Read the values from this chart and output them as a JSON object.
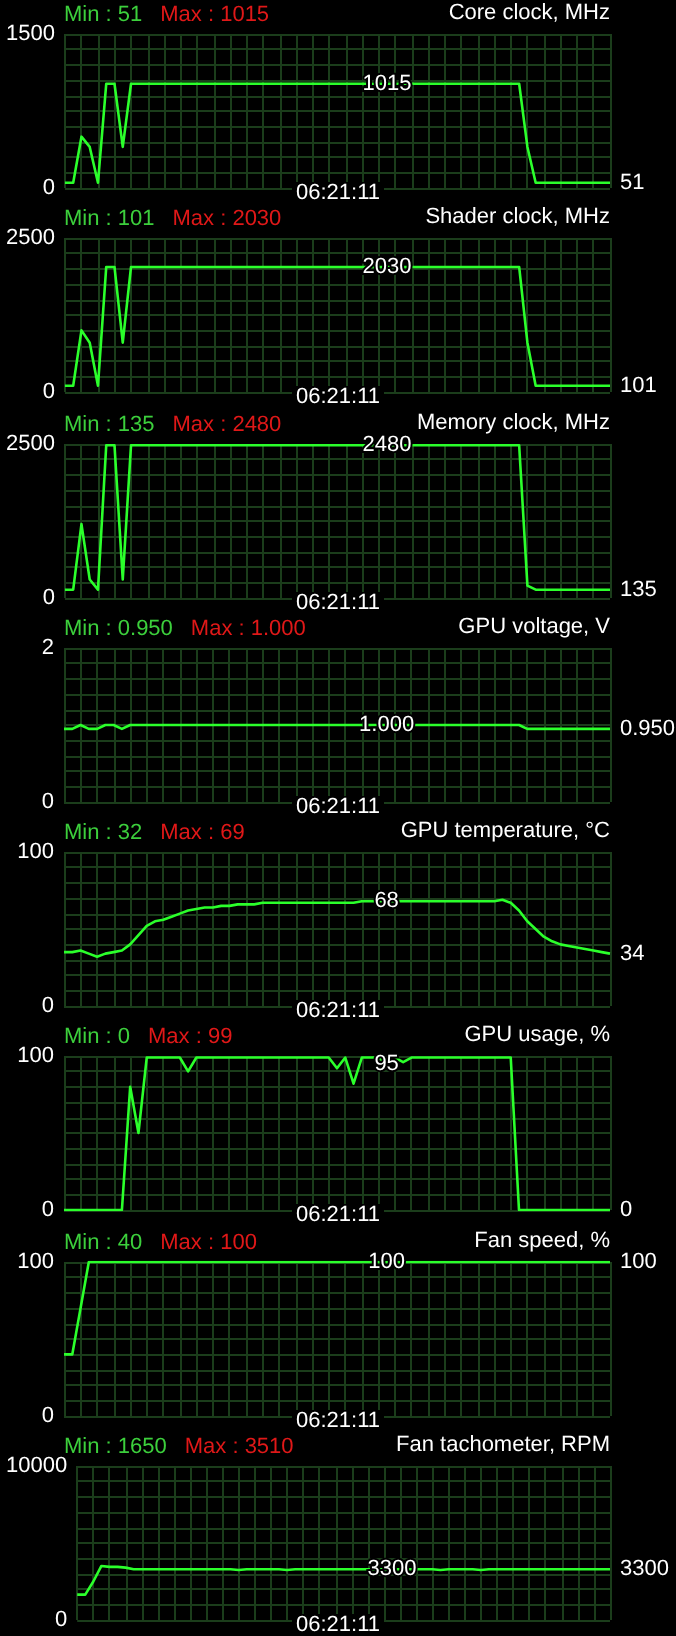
{
  "chart_data": [
    {
      "type": "line",
      "title": "Core clock, MHz",
      "annotations": [
        "Min : 51",
        "Max : 1015",
        "06:21:11"
      ],
      "grid": true,
      "ylim": [
        0,
        1500
      ],
      "yticks": [
        0,
        {
          "value": 150,
          "label": null
        },
        {
          "value": 300,
          "label": null
        },
        {
          "value": 450,
          "label": null
        },
        {
          "value": 600,
          "label": null
        },
        {
          "value": 750,
          "label": null
        },
        {
          "value": 900,
          "label": null
        },
        {
          "value": 1050,
          "label": null
        },
        {
          "value": 1200,
          "label": null
        },
        {
          "value": 1350,
          "label": null
        },
        1500
      ],
      "categories": [
        null,
        null,
        null,
        null,
        null,
        null,
        null,
        null,
        null,
        null,
        null,
        null,
        null,
        null,
        null,
        null,
        null,
        null,
        null,
        null,
        null,
        null,
        null,
        null,
        null,
        null,
        null,
        null,
        null,
        null,
        null,
        null,
        null,
        null,
        null,
        null,
        null,
        null,
        null,
        null,
        null,
        null,
        null,
        null,
        null,
        null,
        null,
        null,
        null,
        null,
        null,
        null,
        null,
        null,
        null,
        null,
        null,
        null,
        null,
        null,
        null,
        null,
        null,
        null,
        null,
        null,
        null
      ],
      "series": [
        {
          "color": "#2bff2b",
          "values": [
            51,
            51,
            500,
            400,
            51,
            1015,
            1015,
            400,
            1015,
            1015,
            1015,
            1015,
            1015,
            1015,
            1015,
            1015,
            1015,
            1015,
            1015,
            1015,
            1015,
            1015,
            1015,
            1015,
            1015,
            1015,
            1015,
            1015,
            1015,
            1015,
            1015,
            1015,
            1015,
            1015,
            1015,
            1015,
            1015,
            1015,
            1015,
            1015,
            1015,
            1015,
            1015,
            1015,
            1015,
            1015,
            1015,
            1015,
            1015,
            1015,
            1015,
            1015,
            1015,
            1015,
            1015,
            1015,
            400,
            51,
            51,
            51,
            51,
            51,
            51,
            51,
            51,
            51,
            51
          ],
          "value_labels": [
            null,
            null,
            null,
            null,
            null,
            null,
            null,
            null,
            null,
            null,
            null,
            null,
            null,
            null,
            null,
            null,
            null,
            null,
            null,
            null,
            null,
            null,
            null,
            null,
            null,
            null,
            null,
            null,
            null,
            null,
            null,
            null,
            null,
            null,
            null,
            null,
            null,
            null,
            null,
            "1015",
            null,
            null,
            null,
            null,
            null,
            null,
            null,
            null,
            null,
            null,
            null,
            null,
            null,
            null,
            null,
            null,
            null,
            null,
            null,
            null,
            null,
            null,
            null,
            null,
            null,
            null,
            "51"
          ]
        }
      ]
    },
    {
      "type": "line",
      "title": "Shader clock, MHz",
      "annotations": [
        "Min : 101",
        "Max : 2030",
        "06:21:11"
      ],
      "grid": true,
      "ylim": [
        0,
        2500
      ],
      "yticks": [
        0,
        {
          "value": 250,
          "label": null
        },
        {
          "value": 500,
          "label": null
        },
        {
          "value": 750,
          "label": null
        },
        {
          "value": 1000,
          "label": null
        },
        {
          "value": 1250,
          "label": null
        },
        {
          "value": 1500,
          "label": null
        },
        {
          "value": 1750,
          "label": null
        },
        {
          "value": 2000,
          "label": null
        },
        {
          "value": 2250,
          "label": null
        },
        2500
      ],
      "categories": [
        null,
        null,
        null,
        null,
        null,
        null,
        null,
        null,
        null,
        null,
        null,
        null,
        null,
        null,
        null,
        null,
        null,
        null,
        null,
        null,
        null,
        null,
        null,
        null,
        null,
        null,
        null,
        null,
        null,
        null,
        null,
        null,
        null,
        null,
        null,
        null,
        null,
        null,
        null,
        null,
        null,
        null,
        null,
        null,
        null,
        null,
        null,
        null,
        null,
        null,
        null,
        null,
        null,
        null,
        null,
        null,
        null,
        null,
        null,
        null,
        null,
        null,
        null,
        null,
        null,
        null,
        null
      ],
      "series": [
        {
          "color": "#2bff2b",
          "values": [
            101,
            101,
            1000,
            800,
            101,
            2030,
            2030,
            800,
            2030,
            2030,
            2030,
            2030,
            2030,
            2030,
            2030,
            2030,
            2030,
            2030,
            2030,
            2030,
            2030,
            2030,
            2030,
            2030,
            2030,
            2030,
            2030,
            2030,
            2030,
            2030,
            2030,
            2030,
            2030,
            2030,
            2030,
            2030,
            2030,
            2030,
            2030,
            2030,
            2030,
            2030,
            2030,
            2030,
            2030,
            2030,
            2030,
            2030,
            2030,
            2030,
            2030,
            2030,
            2030,
            2030,
            2030,
            2030,
            800,
            101,
            101,
            101,
            101,
            101,
            101,
            101,
            101,
            101,
            101
          ],
          "value_labels": [
            null,
            null,
            null,
            null,
            null,
            null,
            null,
            null,
            null,
            null,
            null,
            null,
            null,
            null,
            null,
            null,
            null,
            null,
            null,
            null,
            null,
            null,
            null,
            null,
            null,
            null,
            null,
            null,
            null,
            null,
            null,
            null,
            null,
            null,
            null,
            null,
            null,
            null,
            null,
            "2030",
            null,
            null,
            null,
            null,
            null,
            null,
            null,
            null,
            null,
            null,
            null,
            null,
            null,
            null,
            null,
            null,
            null,
            null,
            null,
            null,
            null,
            null,
            null,
            null,
            null,
            null,
            "101"
          ]
        }
      ]
    },
    {
      "type": "line",
      "title": "Memory clock, MHz",
      "annotations": [
        "Min : 135",
        "Max : 2480",
        "06:21:11"
      ],
      "grid": true,
      "ylim": [
        0,
        2500
      ],
      "yticks": [
        0,
        {
          "value": 250,
          "label": null
        },
        {
          "value": 500,
          "label": null
        },
        {
          "value": 750,
          "label": null
        },
        {
          "value": 1000,
          "label": null
        },
        {
          "value": 1250,
          "label": null
        },
        {
          "value": 1500,
          "label": null
        },
        {
          "value": 1750,
          "label": null
        },
        {
          "value": 2000,
          "label": null
        },
        {
          "value": 2250,
          "label": null
        },
        2500
      ],
      "categories": [
        null,
        null,
        null,
        null,
        null,
        null,
        null,
        null,
        null,
        null,
        null,
        null,
        null,
        null,
        null,
        null,
        null,
        null,
        null,
        null,
        null,
        null,
        null,
        null,
        null,
        null,
        null,
        null,
        null,
        null,
        null,
        null,
        null,
        null,
        null,
        null,
        null,
        null,
        null,
        null,
        null,
        null,
        null,
        null,
        null,
        null,
        null,
        null,
        null,
        null,
        null,
        null,
        null,
        null,
        null,
        null,
        null,
        null,
        null,
        null,
        null,
        null,
        null,
        null,
        null,
        null,
        null
      ],
      "series": [
        {
          "color": "#2bff2b",
          "values": [
            135,
            135,
            1200,
            300,
            135,
            2480,
            2480,
            300,
            2480,
            2480,
            2480,
            2480,
            2480,
            2480,
            2480,
            2480,
            2480,
            2480,
            2480,
            2480,
            2480,
            2480,
            2480,
            2480,
            2480,
            2480,
            2480,
            2480,
            2480,
            2480,
            2480,
            2480,
            2480,
            2480,
            2480,
            2480,
            2480,
            2480,
            2480,
            2480,
            2480,
            2480,
            2480,
            2480,
            2480,
            2480,
            2480,
            2480,
            2480,
            2480,
            2480,
            2480,
            2480,
            2480,
            2480,
            2480,
            200,
            135,
            135,
            135,
            135,
            135,
            135,
            135,
            135,
            135,
            135
          ],
          "value_labels": [
            null,
            null,
            null,
            null,
            null,
            null,
            null,
            null,
            null,
            null,
            null,
            null,
            null,
            null,
            null,
            null,
            null,
            null,
            null,
            null,
            null,
            null,
            null,
            null,
            null,
            null,
            null,
            null,
            null,
            null,
            null,
            null,
            null,
            null,
            null,
            null,
            null,
            null,
            null,
            "2480",
            null,
            null,
            null,
            null,
            null,
            null,
            null,
            null,
            null,
            null,
            null,
            null,
            null,
            null,
            null,
            null,
            null,
            null,
            null,
            null,
            null,
            null,
            null,
            null,
            null,
            null,
            "135"
          ]
        }
      ]
    },
    {
      "type": "line",
      "title": "GPU voltage, V",
      "annotations": [
        "Min : 0.950",
        "Max : 1.000",
        "06:21:11"
      ],
      "grid": true,
      "ylim": [
        0,
        2
      ],
      "yticks": [
        0,
        {
          "value": 0.2,
          "label": null
        },
        {
          "value": 0.4,
          "label": null
        },
        {
          "value": 0.6,
          "label": null
        },
        {
          "value": 0.8,
          "label": null
        },
        {
          "value": 1,
          "label": null
        },
        {
          "value": 1.2,
          "label": null
        },
        {
          "value": 1.4,
          "label": null
        },
        {
          "value": 1.6,
          "label": null
        },
        {
          "value": 1.8,
          "label": null
        },
        2
      ],
      "categories": [
        null,
        null,
        null,
        null,
        null,
        null,
        null,
        null,
        null,
        null,
        null,
        null,
        null,
        null,
        null,
        null,
        null,
        null,
        null,
        null,
        null,
        null,
        null,
        null,
        null,
        null,
        null,
        null,
        null,
        null,
        null,
        null,
        null,
        null,
        null,
        null,
        null,
        null,
        null,
        null,
        null,
        null,
        null,
        null,
        null,
        null,
        null,
        null,
        null,
        null,
        null,
        null,
        null,
        null,
        null,
        null,
        null,
        null,
        null,
        null,
        null,
        null,
        null,
        null,
        null,
        null,
        null
      ],
      "series": [
        {
          "color": "#2bff2b",
          "values": [
            0.95,
            0.95,
            1,
            0.95,
            0.95,
            1,
            1,
            0.95,
            1,
            1,
            1,
            1,
            1,
            1,
            1,
            1,
            1,
            1,
            1,
            1,
            1,
            1,
            1,
            1,
            1,
            1,
            1,
            1,
            1,
            1,
            1,
            1,
            1,
            1,
            1,
            1,
            1,
            1,
            1,
            1,
            1,
            1,
            1,
            1,
            1,
            1,
            1,
            1,
            1,
            1,
            1,
            1,
            1,
            1,
            1,
            1,
            0.95,
            0.95,
            0.95,
            0.95,
            0.95,
            0.95,
            0.95,
            0.95,
            0.95,
            0.95,
            0.95
          ],
          "value_labels": [
            null,
            null,
            null,
            null,
            null,
            null,
            null,
            null,
            null,
            null,
            null,
            null,
            null,
            null,
            null,
            null,
            null,
            null,
            null,
            null,
            null,
            null,
            null,
            null,
            null,
            null,
            null,
            null,
            null,
            null,
            null,
            null,
            null,
            null,
            null,
            null,
            null,
            null,
            null,
            "1.000",
            null,
            null,
            null,
            null,
            null,
            null,
            null,
            null,
            null,
            null,
            null,
            null,
            null,
            null,
            null,
            null,
            null,
            null,
            null,
            null,
            null,
            null,
            null,
            null,
            null,
            null,
            "0.950"
          ]
        }
      ]
    },
    {
      "type": "line",
      "title": "GPU temperature, °C",
      "annotations": [
        "Min : 32",
        "Max : 69",
        "06:21:11"
      ],
      "grid": true,
      "ylim": [
        0,
        100
      ],
      "yticks": [
        0,
        {
          "value": 10,
          "label": null
        },
        {
          "value": 20,
          "label": null
        },
        {
          "value": 30,
          "label": null
        },
        {
          "value": 40,
          "label": null
        },
        {
          "value": 50,
          "label": null
        },
        {
          "value": 60,
          "label": null
        },
        {
          "value": 70,
          "label": null
        },
        {
          "value": 80,
          "label": null
        },
        {
          "value": 90,
          "label": null
        },
        100
      ],
      "categories": [
        null,
        null,
        null,
        null,
        null,
        null,
        null,
        null,
        null,
        null,
        null,
        null,
        null,
        null,
        null,
        null,
        null,
        null,
        null,
        null,
        null,
        null,
        null,
        null,
        null,
        null,
        null,
        null,
        null,
        null,
        null,
        null,
        null,
        null,
        null,
        null,
        null,
        null,
        null,
        null,
        null,
        null,
        null,
        null,
        null,
        null,
        null,
        null,
        null,
        null,
        null,
        null,
        null,
        null,
        null,
        null,
        null,
        null,
        null,
        null,
        null,
        null,
        null,
        null,
        null,
        null,
        null
      ],
      "series": [
        {
          "color": "#2bff2b",
          "values": [
            35,
            35,
            36,
            34,
            32,
            34,
            35,
            36,
            40,
            46,
            52,
            55,
            56,
            58,
            60,
            62,
            63,
            64,
            64,
            65,
            65,
            66,
            66,
            66,
            67,
            67,
            67,
            67,
            67,
            67,
            67,
            67,
            67,
            67,
            67,
            67,
            68,
            68,
            68,
            68,
            68,
            68,
            68,
            68,
            68,
            68,
            68,
            68,
            68,
            68,
            68,
            68,
            68,
            69,
            67,
            62,
            55,
            50,
            45,
            42,
            40,
            39,
            38,
            37,
            36,
            35,
            34
          ],
          "value_labels": [
            null,
            null,
            null,
            null,
            null,
            null,
            null,
            null,
            null,
            null,
            null,
            null,
            null,
            null,
            null,
            null,
            null,
            null,
            null,
            null,
            null,
            null,
            null,
            null,
            null,
            null,
            null,
            null,
            null,
            null,
            null,
            null,
            null,
            null,
            null,
            null,
            null,
            null,
            null,
            "68",
            null,
            null,
            null,
            null,
            null,
            null,
            null,
            null,
            null,
            null,
            null,
            null,
            null,
            null,
            null,
            null,
            null,
            null,
            null,
            null,
            null,
            null,
            null,
            null,
            null,
            null,
            "34"
          ]
        }
      ]
    },
    {
      "type": "line",
      "title": "GPU usage, %",
      "annotations": [
        "Min : 0",
        "Max : 99",
        "06:21:11"
      ],
      "grid": true,
      "ylim": [
        0,
        100
      ],
      "yticks": [
        0,
        {
          "value": 10,
          "label": null
        },
        {
          "value": 20,
          "label": null
        },
        {
          "value": 30,
          "label": null
        },
        {
          "value": 40,
          "label": null
        },
        {
          "value": 50,
          "label": null
        },
        {
          "value": 60,
          "label": null
        },
        {
          "value": 70,
          "label": null
        },
        {
          "value": 80,
          "label": null
        },
        {
          "value": 90,
          "label": null
        },
        100
      ],
      "categories": [
        null,
        null,
        null,
        null,
        null,
        null,
        null,
        null,
        null,
        null,
        null,
        null,
        null,
        null,
        null,
        null,
        null,
        null,
        null,
        null,
        null,
        null,
        null,
        null,
        null,
        null,
        null,
        null,
        null,
        null,
        null,
        null,
        null,
        null,
        null,
        null,
        null,
        null,
        null,
        null,
        null,
        null,
        null,
        null,
        null,
        null,
        null,
        null,
        null,
        null,
        null,
        null,
        null,
        null,
        null,
        null,
        null,
        null,
        null,
        null,
        null,
        null,
        null,
        null,
        null,
        null,
        null
      ],
      "series": [
        {
          "color": "#2bff2b",
          "values": [
            0,
            0,
            0,
            0,
            0,
            0,
            0,
            0,
            80,
            50,
            99,
            99,
            99,
            99,
            99,
            90,
            99,
            99,
            99,
            99,
            99,
            99,
            99,
            99,
            99,
            99,
            99,
            99,
            99,
            99,
            99,
            99,
            99,
            92,
            99,
            82,
            99,
            99,
            99,
            95,
            99,
            96,
            99,
            99,
            99,
            99,
            99,
            99,
            99,
            99,
            99,
            99,
            99,
            99,
            99,
            0,
            0,
            0,
            0,
            0,
            0,
            0,
            0,
            0,
            0,
            0,
            0
          ],
          "value_labels": [
            null,
            null,
            null,
            null,
            null,
            null,
            null,
            null,
            null,
            null,
            null,
            null,
            null,
            null,
            null,
            null,
            null,
            null,
            null,
            null,
            null,
            null,
            null,
            null,
            null,
            null,
            null,
            null,
            null,
            null,
            null,
            null,
            null,
            null,
            null,
            null,
            null,
            null,
            null,
            "95",
            null,
            null,
            null,
            null,
            null,
            null,
            null,
            null,
            null,
            null,
            null,
            null,
            null,
            null,
            null,
            null,
            null,
            null,
            null,
            null,
            null,
            null,
            null,
            null,
            null,
            null,
            "0"
          ]
        }
      ]
    },
    {
      "type": "line",
      "title": "Fan speed, %",
      "annotations": [
        "Min : 40",
        "Max : 100",
        "06:21:11"
      ],
      "grid": true,
      "ylim": [
        0,
        100
      ],
      "yticks": [
        0,
        {
          "value": 10,
          "label": null
        },
        {
          "value": 20,
          "label": null
        },
        {
          "value": 30,
          "label": null
        },
        {
          "value": 40,
          "label": null
        },
        {
          "value": 50,
          "label": null
        },
        {
          "value": 60,
          "label": null
        },
        {
          "value": 70,
          "label": null
        },
        {
          "value": 80,
          "label": null
        },
        {
          "value": 90,
          "label": null
        },
        100
      ],
      "categories": [
        null,
        null,
        null,
        null,
        null,
        null,
        null,
        null,
        null,
        null,
        null,
        null,
        null,
        null,
        null,
        null,
        null,
        null,
        null,
        null,
        null,
        null,
        null,
        null,
        null,
        null,
        null,
        null,
        null,
        null,
        null,
        null,
        null,
        null,
        null,
        null,
        null,
        null,
        null,
        null,
        null,
        null,
        null,
        null,
        null,
        null,
        null,
        null,
        null,
        null,
        null,
        null,
        null,
        null,
        null,
        null,
        null,
        null,
        null,
        null,
        null,
        null,
        null,
        null,
        null,
        null,
        null
      ],
      "series": [
        {
          "color": "#2bff2b",
          "values": [
            40,
            40,
            70,
            100,
            100,
            100,
            100,
            100,
            100,
            100,
            100,
            100,
            100,
            100,
            100,
            100,
            100,
            100,
            100,
            100,
            100,
            100,
            100,
            100,
            100,
            100,
            100,
            100,
            100,
            100,
            100,
            100,
            100,
            100,
            100,
            100,
            100,
            100,
            100,
            100,
            100,
            100,
            100,
            100,
            100,
            100,
            100,
            100,
            100,
            100,
            100,
            100,
            100,
            100,
            100,
            100,
            100,
            100,
            100,
            100,
            100,
            100,
            100,
            100,
            100,
            100,
            100
          ],
          "value_labels": [
            null,
            null,
            null,
            null,
            null,
            null,
            null,
            null,
            null,
            null,
            null,
            null,
            null,
            null,
            null,
            null,
            null,
            null,
            null,
            null,
            null,
            null,
            null,
            null,
            null,
            null,
            null,
            null,
            null,
            null,
            null,
            null,
            null,
            null,
            null,
            null,
            null,
            null,
            null,
            "100",
            null,
            null,
            null,
            null,
            null,
            null,
            null,
            null,
            null,
            null,
            null,
            null,
            null,
            null,
            null,
            null,
            null,
            null,
            null,
            null,
            null,
            null,
            null,
            null,
            null,
            null,
            "100"
          ]
        }
      ]
    },
    {
      "type": "line",
      "title": "Fan tachometer, RPM",
      "annotations": [
        "Min : 1650",
        "Max : 3510",
        "06:21:11"
      ],
      "grid": true,
      "ylim": [
        0,
        10000
      ],
      "yticks": [
        0,
        {
          "value": 1000,
          "label": null
        },
        {
          "value": 2000,
          "label": null
        },
        {
          "value": 3000,
          "label": null
        },
        {
          "value": 4000,
          "label": null
        },
        {
          "value": 5000,
          "label": null
        },
        {
          "value": 6000,
          "label": null
        },
        {
          "value": 7000,
          "label": null
        },
        {
          "value": 8000,
          "label": null
        },
        {
          "value": 9000,
          "label": null
        },
        10000
      ],
      "categories": [
        null,
        null,
        null,
        null,
        null,
        null,
        null,
        null,
        null,
        null,
        null,
        null,
        null,
        null,
        null,
        null,
        null,
        null,
        null,
        null,
        null,
        null,
        null,
        null,
        null,
        null,
        null,
        null,
        null,
        null,
        null,
        null,
        null,
        null,
        null,
        null,
        null,
        null,
        null,
        null,
        null,
        null,
        null,
        null,
        null,
        null,
        null,
        null,
        null,
        null,
        null,
        null,
        null,
        null,
        null,
        null,
        null,
        null,
        null,
        null,
        null,
        null,
        null,
        null,
        null,
        null,
        null
      ],
      "series": [
        {
          "color": "#2bff2b",
          "values": [
            1650,
            1650,
            2500,
            3510,
            3450,
            3450,
            3400,
            3300,
            3300,
            3300,
            3300,
            3300,
            3300,
            3300,
            3300,
            3300,
            3300,
            3300,
            3300,
            3300,
            3250,
            3300,
            3300,
            3300,
            3300,
            3300,
            3250,
            3300,
            3300,
            3300,
            3300,
            3300,
            3300,
            3300,
            3300,
            3300,
            3300,
            3300,
            3300,
            3300,
            3300,
            3300,
            3300,
            3300,
            3300,
            3250,
            3300,
            3300,
            3300,
            3300,
            3250,
            3300,
            3300,
            3300,
            3300,
            3300,
            3300,
            3300,
            3300,
            3300,
            3300,
            3300,
            3300,
            3300,
            3300,
            3300,
            3300
          ],
          "value_labels": [
            null,
            null,
            null,
            null,
            null,
            null,
            null,
            null,
            null,
            null,
            null,
            null,
            null,
            null,
            null,
            null,
            null,
            null,
            null,
            null,
            null,
            null,
            null,
            null,
            null,
            null,
            null,
            null,
            null,
            null,
            null,
            null,
            null,
            null,
            null,
            null,
            null,
            null,
            null,
            "3300",
            null,
            null,
            null,
            null,
            null,
            null,
            null,
            null,
            null,
            null,
            null,
            null,
            null,
            null,
            null,
            null,
            null,
            null,
            null,
            null,
            null,
            null,
            null,
            null,
            null,
            null,
            "3300"
          ]
        }
      ]
    }
  ]
}
